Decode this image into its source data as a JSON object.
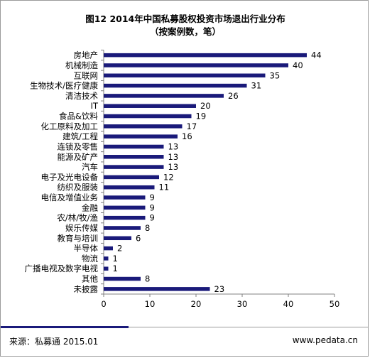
{
  "chart_data": {
    "type": "bar",
    "orientation": "horizontal",
    "title": "图12 2014年中国私募股权投资市场退出行业分布",
    "subtitle": "（按案例数，笔）",
    "categories": [
      "房地产",
      "机械制造",
      "互联网",
      "生物技术/医疗健康",
      "清洁技术",
      "IT",
      "食品&饮料",
      "化工原料及加工",
      "建筑/工程",
      "连锁及零售",
      "能源及矿产",
      "汽车",
      "电子及光电设备",
      "纺织及服装",
      "电信及增值业务",
      "金融",
      "农/林/牧/渔",
      "娱乐传媒",
      "教育与培训",
      "半导体",
      "物流",
      "广播电视及数字电视",
      "其他",
      "未披露"
    ],
    "values": [
      44,
      40,
      35,
      31,
      26,
      20,
      19,
      17,
      16,
      13,
      13,
      13,
      12,
      11,
      9,
      9,
      9,
      8,
      6,
      2,
      1,
      1,
      8,
      23
    ],
    "xlim": [
      0,
      50
    ],
    "xticks": [
      0,
      10,
      20,
      30,
      40,
      50
    ],
    "grid": false,
    "legend": "none",
    "bar_color": "#1a1a7a"
  },
  "footer": {
    "source": "来源：私募通  2015.01",
    "site": "www.pedata.cn",
    "accent_color": "#1a1a7a"
  }
}
